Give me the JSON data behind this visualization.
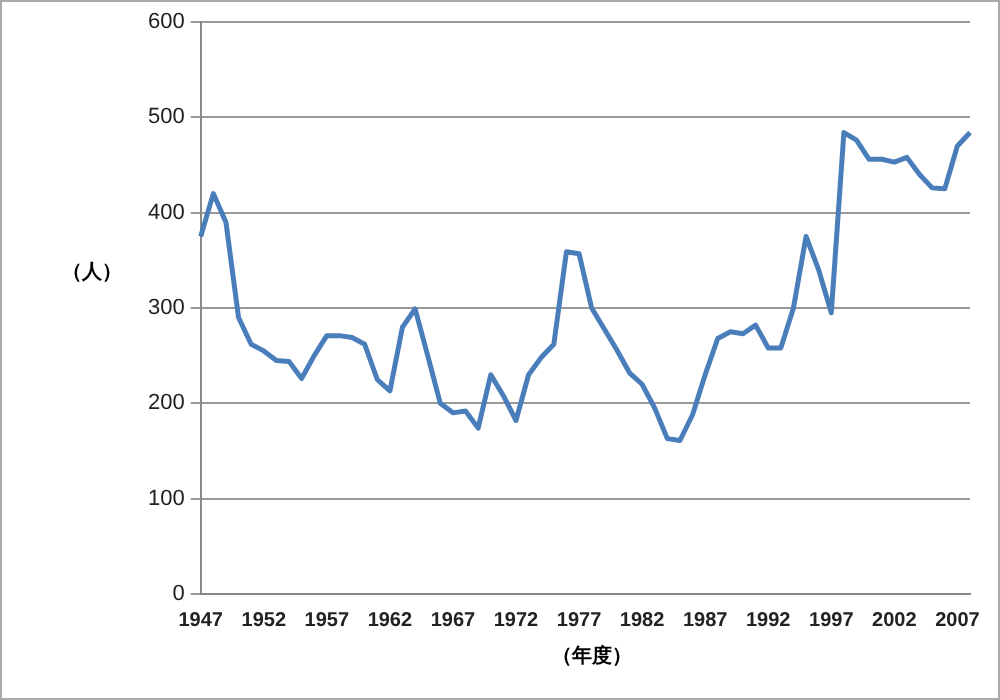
{
  "chart_data": {
    "type": "line",
    "xlabel": "（年度）",
    "ylabel": "（人）",
    "categories": [
      "1947",
      null,
      null,
      null,
      null,
      "1952",
      null,
      null,
      null,
      null,
      "1957",
      null,
      null,
      null,
      null,
      "1962",
      null,
      null,
      null,
      null,
      "1967",
      null,
      null,
      null,
      null,
      "1972",
      null,
      null,
      null,
      null,
      "1977",
      null,
      null,
      null,
      null,
      "1982",
      null,
      null,
      null,
      null,
      "1987",
      null,
      null,
      null,
      null,
      "1992",
      null,
      null,
      null,
      null,
      "1997",
      null,
      null,
      null,
      null,
      "2002",
      null,
      null,
      null,
      null,
      "2007",
      null
    ],
    "series": [
      {
        "color": "#4a7ebb",
        "values": [
          375,
          420,
          390,
          290,
          262,
          255,
          245,
          244,
          226,
          250,
          271,
          271,
          269,
          262,
          225,
          213,
          280,
          299,
          250,
          200,
          190,
          192,
          174,
          230,
          208,
          182,
          230,
          248,
          262,
          359,
          357,
          300,
          278,
          256,
          232,
          220,
          195,
          163,
          161,
          188,
          230,
          268,
          275,
          273,
          282,
          258,
          258,
          300,
          375,
          340,
          295,
          484,
          476,
          456,
          456,
          453,
          458,
          440,
          426,
          425,
          470,
          484
        ]
      }
    ],
    "ylim": [
      0,
      600
    ],
    "yticks": [
      0,
      100,
      200,
      300,
      400,
      500,
      600
    ],
    "grid": "y",
    "legend": false,
    "marker": "none",
    "line_style": "solid"
  }
}
